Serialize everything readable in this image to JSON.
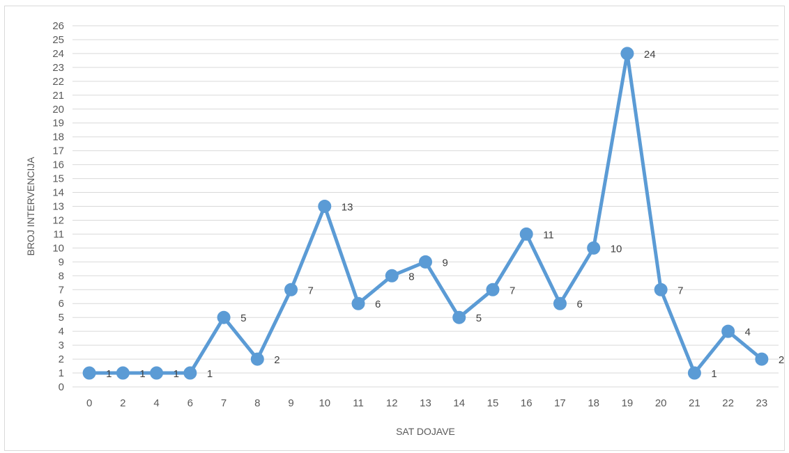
{
  "chart_data": {
    "type": "line",
    "xlabel": "SAT DOJAVE",
    "ylabel": "BROJ INTERVENCIJA",
    "categories": [
      "0",
      "2",
      "4",
      "6",
      "7",
      "8",
      "9",
      "10",
      "11",
      "12",
      "13",
      "14",
      "15",
      "16",
      "17",
      "18",
      "19",
      "20",
      "21",
      "22",
      "23"
    ],
    "values": [
      1,
      1,
      1,
      1,
      5,
      2,
      7,
      13,
      6,
      8,
      9,
      5,
      7,
      11,
      6,
      10,
      24,
      7,
      1,
      4,
      2
    ],
    "ylim": [
      0,
      26
    ],
    "ytick_step": 1,
    "grid": true,
    "data_labels": true,
    "legend": "none",
    "series_color": "#5b9bd5",
    "grid_color": "#d9d9d9"
  }
}
